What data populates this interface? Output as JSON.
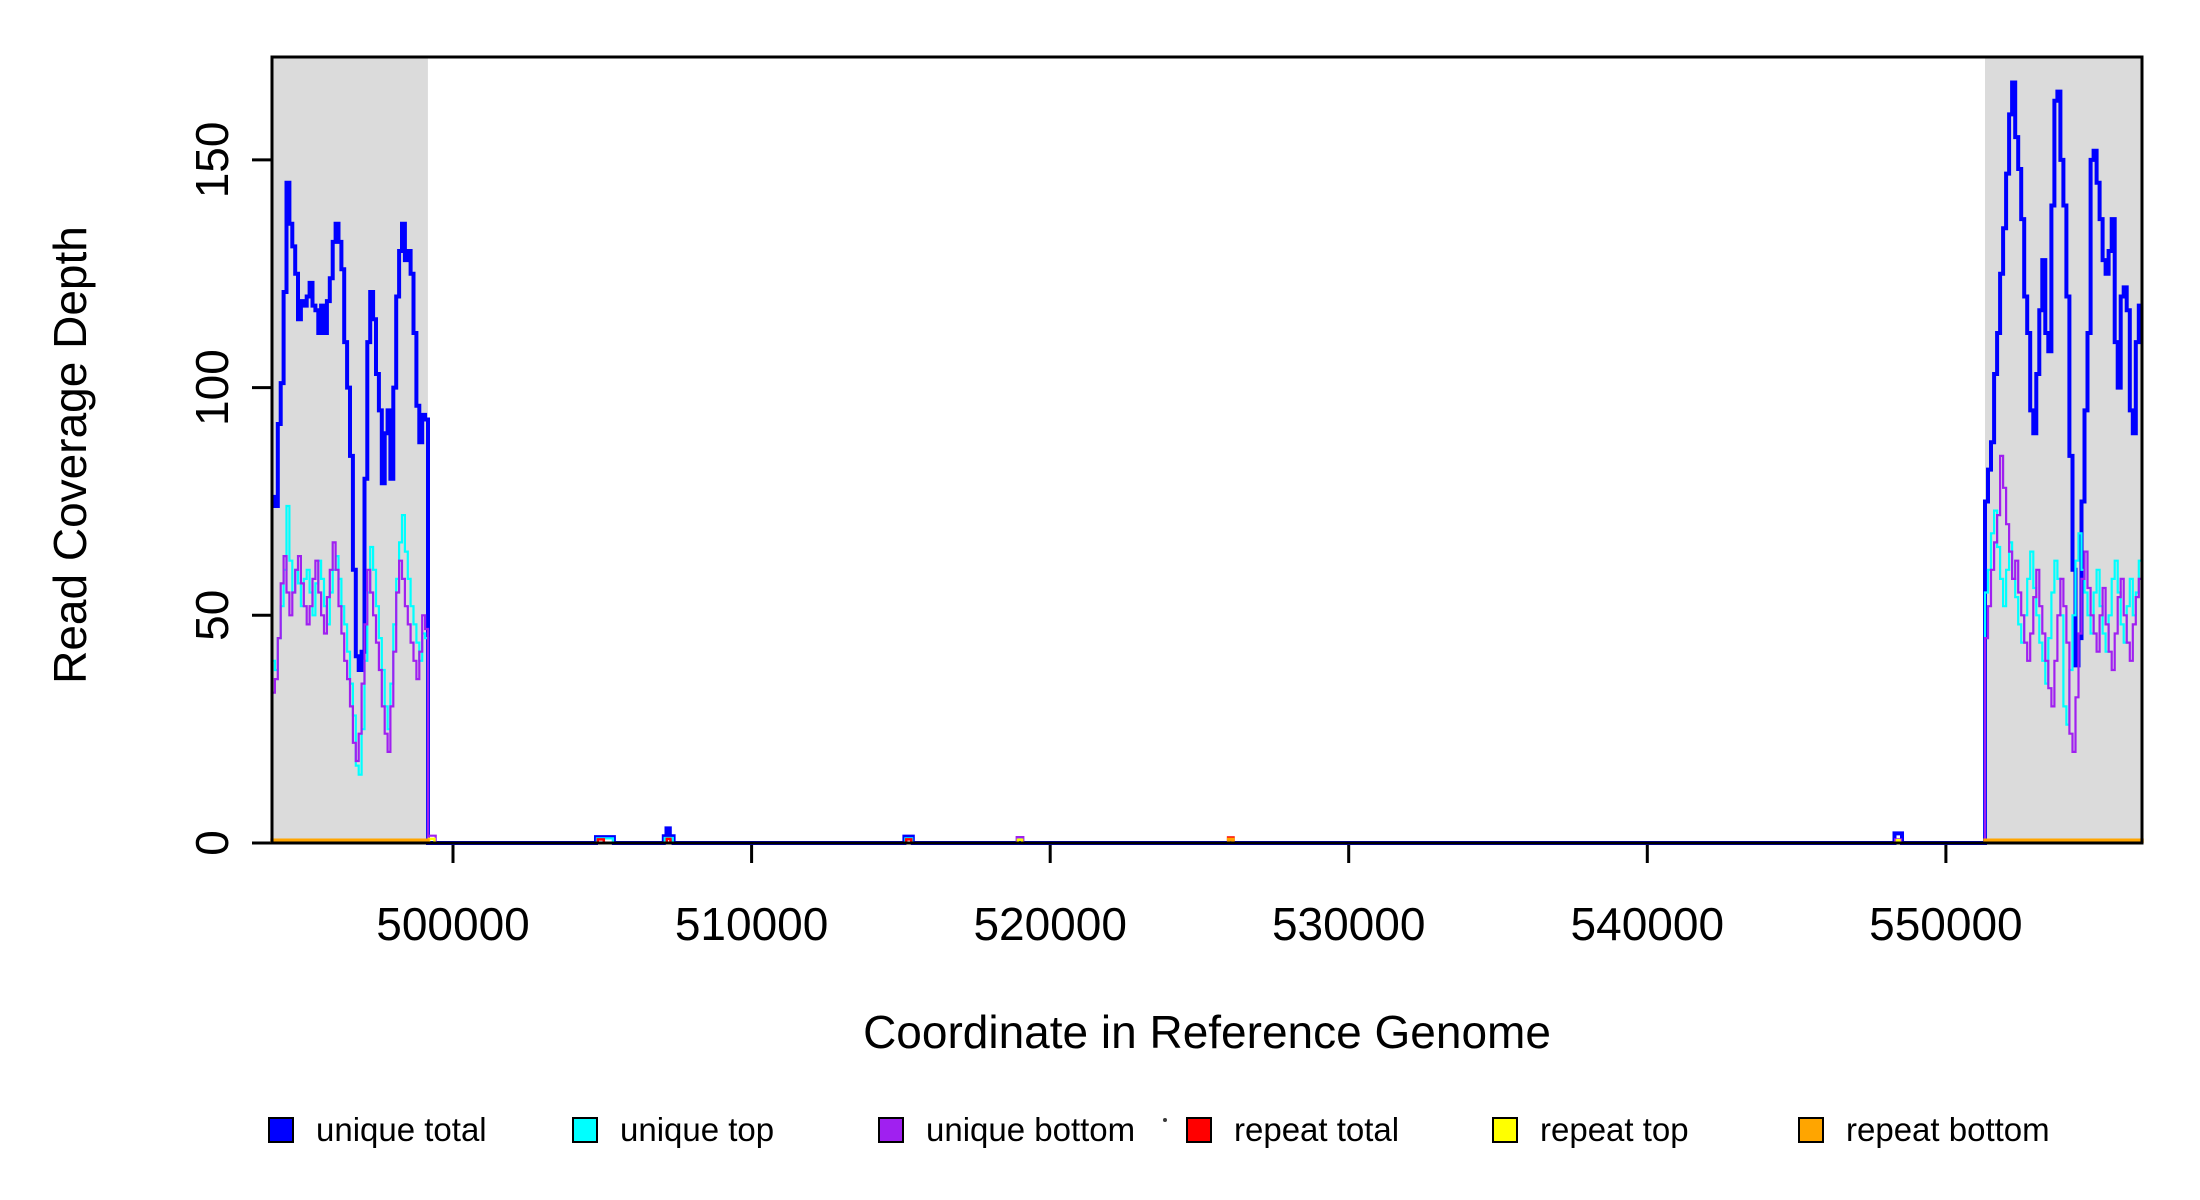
{
  "chart_data": {
    "type": "line",
    "subtype": "step",
    "title": "",
    "xlabel": "Coordinate in Reference Genome",
    "ylabel": "Read Coverage Depth",
    "xlim": [
      493938,
      556568
    ],
    "ylim": [
      0,
      172.6
    ],
    "grid": false,
    "xticks": {
      "values": [
        500000,
        510000,
        520000,
        530000,
        540000,
        550000
      ],
      "labels": [
        "500000",
        "510000",
        "520000",
        "530000",
        "540000",
        "550000"
      ]
    },
    "yticks": {
      "values": [
        0,
        50,
        100,
        150
      ],
      "labels": [
        "0",
        "50",
        "100",
        "150"
      ]
    },
    "shaded_regions": [
      {
        "x0": 493938,
        "x1": 499160,
        "color": "#DBDBDB"
      },
      {
        "x0": 551310,
        "x1": 556568,
        "color": "#DBDBDB"
      }
    ],
    "legend_position": "bottom",
    "legend": [
      {
        "label": "unique total",
        "color": "#0000FF"
      },
      {
        "label": "unique top",
        "color": "#00FFFF"
      },
      {
        "label": "unique bottom",
        "color": "#A020F0"
      },
      {
        "label": "repeat total",
        "color": "#FF0000"
      },
      {
        "label": "repeat top",
        "color": "#FFFF00"
      },
      {
        "label": "repeat bottom",
        "color": "#FFA500"
      }
    ],
    "stray_dot": {
      "x": 1165,
      "y": 1120
    },
    "series": [
      {
        "name": "unique total",
        "color": "#0000FF",
        "width": 4,
        "chains": [
          {
            "ground": false,
            "blocks": [
              {
                "x0": 493940,
                "dx": 96.7,
                "values": [
                  76,
                  74,
                  92,
                  101,
                  121,
                  145,
                  136,
                  131,
                  125,
                  115,
                  119,
                  118,
                  120,
                  123,
                  118,
                  117,
                  112,
                  118,
                  112,
                  119,
                  124,
                  132,
                  136,
                  132,
                  126,
                  110,
                  100,
                  85,
                  60,
                  41,
                  38,
                  42,
                  80,
                  110,
                  121,
                  115,
                  103,
                  95,
                  79,
                  90,
                  95,
                  80,
                  100,
                  120,
                  130,
                  136,
                  128,
                  130,
                  125,
                  112,
                  96,
                  88,
                  94,
                  93
                ]
              },
              {
                "x0": 499162,
                "x1": 504790,
                "v": 0
              },
              {
                "x0": 504790,
                "x1": 505390,
                "v": 1.3
              },
              {
                "x0": 505390,
                "x1": 507060,
                "v": 0
              },
              {
                "x0": 507060,
                "x1": 507150,
                "v": 1.5
              },
              {
                "x0": 507150,
                "x1": 507260,
                "v": 3.2
              },
              {
                "x0": 507260,
                "x1": 507390,
                "v": 1.5
              },
              {
                "x0": 507390,
                "x1": 515120,
                "v": 0
              },
              {
                "x0": 515120,
                "x1": 515400,
                "v": 1.4
              },
              {
                "x0": 515400,
                "x1": 548280,
                "v": 0
              },
              {
                "x0": 548280,
                "x1": 548530,
                "v": 2.1
              },
              {
                "x0": 548530,
                "x1": 551310,
                "v": 0
              },
              {
                "x0": 551310,
                "dx": 101,
                "values": [
                  75,
                  82,
                  88,
                  103,
                  112,
                  125,
                  135,
                  147,
                  160,
                  167,
                  155,
                  148,
                  137,
                  120,
                  112,
                  95,
                  90,
                  103,
                  117,
                  128,
                  112,
                  108,
                  140,
                  163,
                  165,
                  150,
                  140,
                  120,
                  85,
                  60,
                  39,
                  45,
                  75,
                  95,
                  112,
                  150,
                  152,
                  145,
                  137,
                  128,
                  125,
                  130,
                  137,
                  110,
                  100,
                  120,
                  122,
                  117,
                  95,
                  90,
                  110,
                  118
                ]
              }
            ]
          }
        ]
      },
      {
        "name": "unique top",
        "color": "#00FFFF",
        "width": 2.2,
        "chains": [
          {
            "ground": false,
            "blocks": [
              {
                "x0": 493940,
                "dx": 96.7,
                "values": [
                  40,
                  38,
                  45,
                  52,
                  60,
                  74,
                  62,
                  55,
                  60,
                  57,
                  52,
                  58,
                  60,
                  55,
                  50,
                  57,
                  62,
                  58,
                  52,
                  48,
                  55,
                  60,
                  63,
                  58,
                  52,
                  48,
                  42,
                  35,
                  28,
                  17,
                  15,
                  25,
                  40,
                  55,
                  65,
                  60,
                  52,
                  45,
                  38,
                  30,
                  25,
                  35,
                  48,
                  58,
                  66,
                  72,
                  64,
                  58,
                  52,
                  48,
                  44,
                  40,
                  46,
                  45
                ]
              },
              {
                "x0": 499162,
                "x1": 504820,
                "v": 0
              },
              {
                "x0": 504820,
                "x1": 505360,
                "v": 1.0
              },
              {
                "x0": 505360,
                "x1": 507090,
                "v": 0
              },
              {
                "x0": 507090,
                "x1": 507360,
                "v": 1.1
              },
              {
                "x0": 507360,
                "x1": 515150,
                "v": 0
              },
              {
                "x0": 515150,
                "x1": 515380,
                "v": 1.0
              },
              {
                "x0": 515380,
                "x1": 518890,
                "v": 0
              },
              {
                "x0": 518890,
                "x1": 519090,
                "v": 1.0
              },
              {
                "x0": 519090,
                "x1": 551310,
                "v": 0
              },
              {
                "x0": 551310,
                "dx": 101,
                "values": [
                  55,
                  60,
                  68,
                  73,
                  65,
                  58,
                  52,
                  60,
                  66,
                  58,
                  54,
                  48,
                  44,
                  50,
                  58,
                  64,
                  56,
                  50,
                  44,
                  40,
                  35,
                  45,
                  55,
                  62,
                  58,
                  50,
                  30,
                  26,
                  38,
                  50,
                  62,
                  68,
                  60,
                  55,
                  50,
                  46,
                  55,
                  60,
                  52,
                  46,
                  42,
                  50,
                  58,
                  62,
                  55,
                  48,
                  44,
                  52,
                  58,
                  50,
                  55,
                  62
                ]
              }
            ]
          }
        ]
      },
      {
        "name": "unique bottom",
        "color": "#A020F0",
        "width": 2.2,
        "chains": [
          {
            "ground": false,
            "blocks": [
              {
                "x0": 493940,
                "dx": 96.7,
                "values": [
                  33,
                  36,
                  45,
                  57,
                  63,
                  55,
                  50,
                  55,
                  60,
                  63,
                  57,
                  52,
                  48,
                  52,
                  58,
                  62,
                  55,
                  50,
                  46,
                  54,
                  60,
                  66,
                  60,
                  52,
                  46,
                  40,
                  36,
                  30,
                  22,
                  18,
                  24,
                  35,
                  48,
                  60,
                  55,
                  50,
                  44,
                  38,
                  30,
                  24,
                  20,
                  30,
                  42,
                  55,
                  62,
                  58,
                  52,
                  48,
                  44,
                  40,
                  36,
                  42,
                  50,
                  47
                ]
              },
              {
                "x0": 499162,
                "x1": 499180,
                "v": 0
              },
              {
                "x0": 499180,
                "x1": 499420,
                "v": 1.6
              },
              {
                "x0": 499420,
                "x1": 518880,
                "v": 0
              },
              {
                "x0": 518880,
                "x1": 519100,
                "v": 1.3
              },
              {
                "x0": 519100,
                "x1": 548300,
                "v": 0
              },
              {
                "x0": 548300,
                "x1": 548500,
                "v": 0.8
              },
              {
                "x0": 548500,
                "x1": 551310,
                "v": 0
              },
              {
                "x0": 551310,
                "dx": 101,
                "values": [
                  45,
                  52,
                  60,
                  66,
                  72,
                  85,
                  78,
                  70,
                  64,
                  58,
                  62,
                  55,
                  50,
                  44,
                  40,
                  46,
                  54,
                  60,
                  52,
                  46,
                  40,
                  34,
                  30,
                  40,
                  50,
                  58,
                  52,
                  44,
                  24,
                  20,
                  32,
                  46,
                  58,
                  64,
                  56,
                  50,
                  46,
                  42,
                  50,
                  56,
                  48,
                  42,
                  38,
                  46,
                  54,
                  58,
                  50,
                  44,
                  40,
                  48,
                  54,
                  58
                ]
              }
            ]
          }
        ]
      },
      {
        "name": "repeat total",
        "color": "#FF0000",
        "width": 2.5,
        "chains": [
          {
            "ground": true,
            "blocks": [
              {
                "x0": 504850,
                "x1": 505050,
                "v": 0.8
              }
            ]
          },
          {
            "ground": true,
            "blocks": [
              {
                "x0": 507160,
                "x1": 507280,
                "v": 0.9
              }
            ]
          },
          {
            "ground": true,
            "blocks": [
              {
                "x0": 515180,
                "x1": 515350,
                "v": 0.8
              }
            ]
          },
          {
            "ground": true,
            "blocks": [
              {
                "x0": 525960,
                "x1": 526140,
                "v": 1.2
              }
            ]
          }
        ]
      },
      {
        "name": "repeat top",
        "color": "#FFFF00",
        "width": 2.5,
        "chains": [
          {
            "ground": true,
            "blocks": [
              {
                "x0": 499200,
                "x1": 499380,
                "v": 0.9
              }
            ]
          },
          {
            "ground": true,
            "blocks": [
              {
                "x0": 518920,
                "x1": 519060,
                "v": 0.7
              }
            ]
          },
          {
            "ground": true,
            "blocks": [
              {
                "x0": 548360,
                "x1": 548450,
                "v": 0.6
              }
            ]
          }
        ]
      },
      {
        "name": "repeat bottom",
        "color": "#FFA500",
        "width": 3.5,
        "chains": [
          {
            "ground": true,
            "blocks": [
              {
                "x0": 493940,
                "x1": 499160,
                "v": 0.6
              }
            ]
          },
          {
            "ground": true,
            "blocks": [
              {
                "x0": 525980,
                "x1": 526120,
                "v": 0.8
              }
            ]
          },
          {
            "ground": true,
            "blocks": [
              {
                "x0": 551310,
                "x1": 556568,
                "v": 0.6
              }
            ]
          }
        ]
      }
    ]
  }
}
